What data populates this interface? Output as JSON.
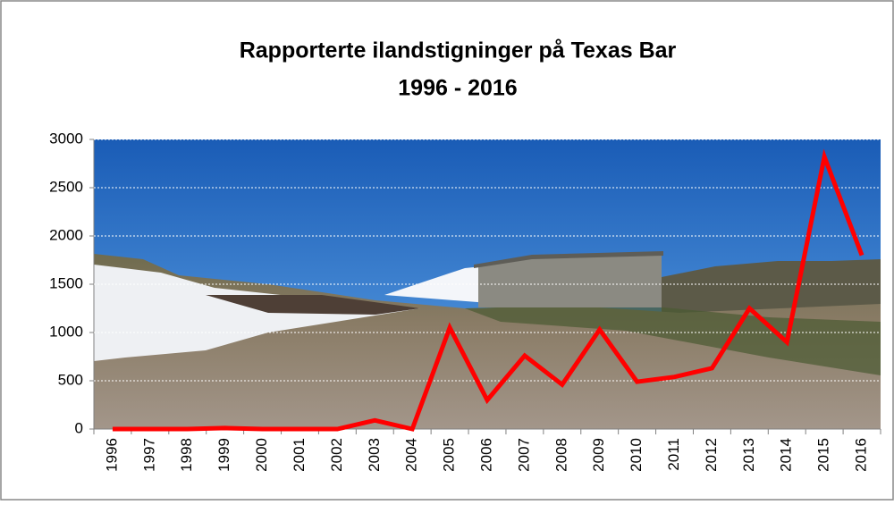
{
  "chart_data": {
    "type": "line",
    "title": [
      "Rapporterte ilandstigninger på Texas Bar",
      "1996 - 2016"
    ],
    "categories": [
      "1996",
      "1997",
      "1998",
      "1999",
      "2000",
      "2001",
      "2002",
      "2003",
      "2004",
      "2005",
      "2006",
      "2007",
      "2008",
      "2009",
      "2010",
      "2011",
      "2012",
      "2013",
      "2014",
      "2015",
      "2016"
    ],
    "values": [
      0,
      0,
      0,
      10,
      0,
      0,
      0,
      90,
      0,
      1050,
      300,
      760,
      460,
      1030,
      490,
      540,
      630,
      1250,
      900,
      2820,
      1800
    ],
    "color": "#ff0000",
    "ylim": [
      0,
      3000
    ],
    "yticks": [
      0,
      500,
      1000,
      1500,
      2000,
      2500,
      3000
    ],
    "grid": true
  }
}
